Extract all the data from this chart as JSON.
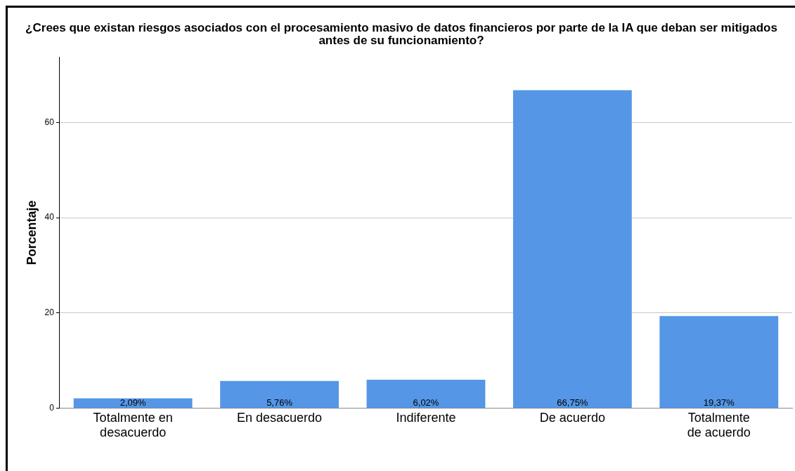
{
  "chart_data": {
    "type": "bar",
    "title": "¿Crees que existan riesgos asociados con el procesamiento masivo de datos financieros por parte de la IA que deban ser mitigados antes de su funcionamiento?",
    "ylabel": "Porcentaje",
    "categories": [
      "Totalmente en desacuerdo",
      "En desacuerdo",
      "Indiferente",
      "De acuerdo",
      "Totalmente de acuerdo"
    ],
    "values": [
      2.09,
      5.76,
      6.02,
      66.75,
      19.37
    ],
    "value_labels": [
      "2,09%",
      "5,76%",
      "6,02%",
      "66,75%",
      "19,37%"
    ],
    "color": "#5596e6",
    "ylim": [
      0,
      73.7
    ],
    "yticks": [
      0,
      20,
      40,
      60
    ],
    "grid": "y",
    "legend": false
  }
}
